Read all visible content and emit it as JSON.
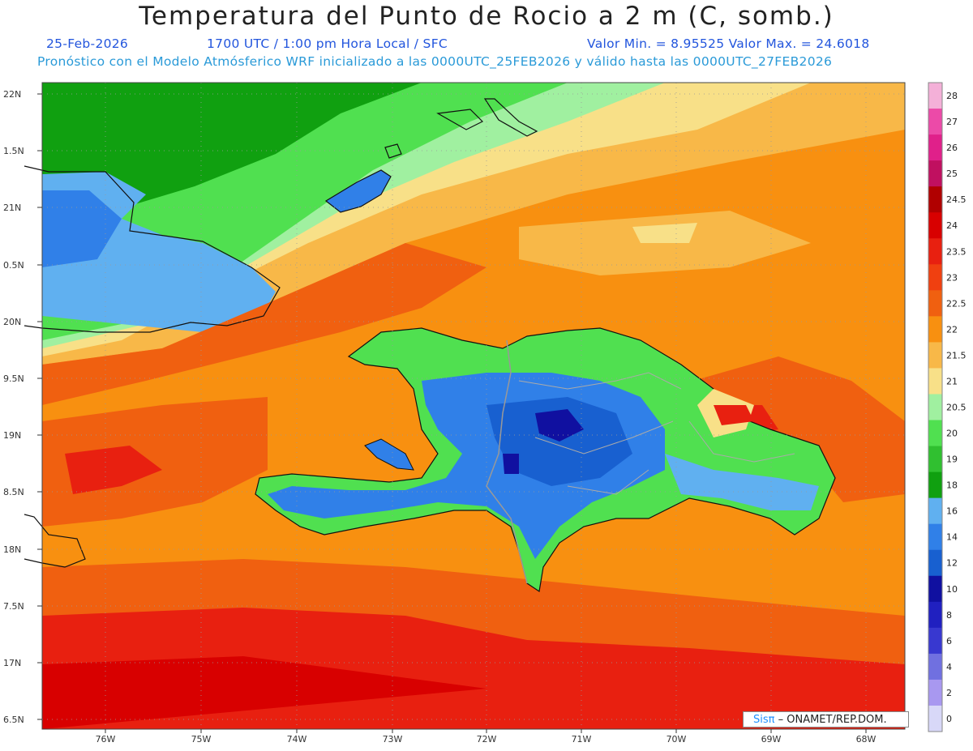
{
  "title": "Temperatura del Punto de Rocio a 2 m (C, somb.)",
  "date": "25-Feb-2026",
  "time": "1700 UTC / 1:00 pm Hora Local / SFC",
  "stats": "Valor Min. = 8.95525   Valor Max. = 24.6018",
  "model_line": "Pronóstico con el Modelo Atmósferico WRF inicializado a las 0000UTC_25FEB2026 y válido hasta las  0000UTC_27FEB2026",
  "lat_labels": [
    "22N",
    "1.5N",
    "21N",
    "0.5N",
    "20N",
    "9.5N",
    "19N",
    "8.5N",
    "18N",
    "7.5N",
    "17N",
    "6.5N"
  ],
  "lon_labels": [
    "76W",
    "75W",
    "74W",
    "73W",
    "72W",
    "71W",
    "70W",
    "69W",
    "68W"
  ],
  "colorbar": {
    "labels": [
      "28",
      "27",
      "26",
      "25",
      "24.5",
      "24",
      "23.5",
      "23",
      "22.5",
      "22",
      "21.5",
      "21",
      "20.5",
      "20",
      "19",
      "18",
      "16",
      "14",
      "12",
      "10",
      "8",
      "6",
      "4",
      "2",
      "0"
    ],
    "colors": [
      "#f4b0d8",
      "#ec4aa8",
      "#e0208a",
      "#c01060",
      "#b00000",
      "#d80000",
      "#e82010",
      "#f04010",
      "#f06010",
      "#f89010",
      "#f8b848",
      "#f8e088",
      "#a0f0a0",
      "#50e050",
      "#30c030",
      "#10a010",
      "#60b0f0",
      "#3080e8",
      "#1860d0",
      "#1010a0",
      "#2020c0",
      "#3838d0",
      "#7070e0",
      "#a898f0",
      "#d8d8f8"
    ]
  },
  "credit": {
    "brand": "Sisπ",
    "org": "– ONAMET/REP.DOM."
  }
}
